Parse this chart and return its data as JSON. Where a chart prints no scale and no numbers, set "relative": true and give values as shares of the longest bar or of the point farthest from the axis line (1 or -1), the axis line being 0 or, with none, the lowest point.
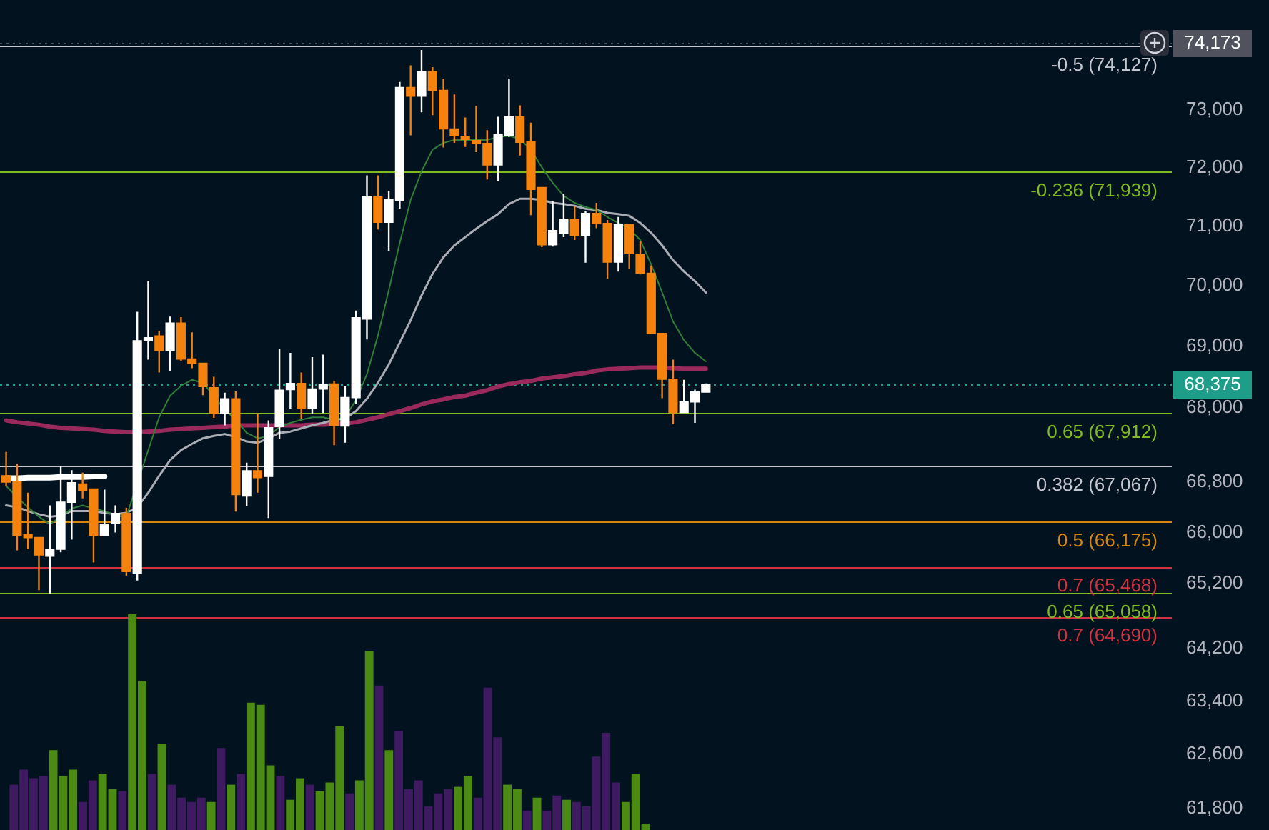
{
  "chart_data": [
    {
      "type": "candlestick",
      "categories": [
        null,
        null,
        null,
        null,
        null,
        null,
        null,
        null,
        null,
        null,
        null,
        null,
        null,
        null,
        null,
        null,
        null,
        null,
        null,
        null,
        null,
        null,
        null,
        null,
        null,
        null,
        null,
        null,
        null,
        null,
        null,
        null,
        null,
        null,
        null,
        null,
        null,
        null,
        null,
        null,
        null,
        null,
        null,
        null,
        null,
        null,
        null,
        null,
        null,
        null,
        null,
        null,
        null,
        null,
        null,
        null,
        null,
        null,
        null,
        null,
        null,
        null,
        null,
        null,
        null
      ],
      "ohlc": [
        [
          66910,
          67280,
          66740,
          66790
        ],
        [
          66820,
          67090,
          65720,
          65940
        ],
        [
          65980,
          66630,
          65740,
          65910
        ],
        [
          65930,
          65930,
          65100,
          65640
        ],
        [
          65620,
          66430,
          65040,
          65750
        ],
        [
          65730,
          67050,
          65690,
          66490
        ],
        [
          66470,
          66990,
          65890,
          66800
        ],
        [
          66780,
          66950,
          66540,
          66650
        ],
        [
          66700,
          66700,
          65530,
          65950
        ],
        [
          65950,
          66680,
          65950,
          66140
        ],
        [
          66130,
          66430,
          66000,
          66310
        ],
        [
          66310,
          66390,
          65320,
          65380
        ],
        [
          65350,
          69570,
          65250,
          69100
        ],
        [
          69080,
          70080,
          68780,
          69150
        ],
        [
          69180,
          69250,
          68570,
          68920
        ],
        [
          68920,
          69490,
          68590,
          69390
        ],
        [
          69390,
          69480,
          68760,
          68780
        ],
        [
          68800,
          69230,
          68640,
          68710
        ],
        [
          68730,
          68730,
          68200,
          68330
        ],
        [
          68330,
          68500,
          67830,
          67890
        ],
        [
          67890,
          68240,
          67710,
          68150
        ],
        [
          68150,
          68260,
          66330,
          66590
        ],
        [
          66570,
          67110,
          66420,
          66990
        ],
        [
          66990,
          67910,
          66630,
          66860
        ],
        [
          66880,
          67790,
          66230,
          67680
        ],
        [
          67680,
          68960,
          67490,
          68290
        ],
        [
          68280,
          68890,
          67970,
          68400
        ],
        [
          68400,
          68570,
          67820,
          67980
        ],
        [
          67980,
          68820,
          67890,
          68310
        ],
        [
          68290,
          68860,
          67910,
          68380
        ],
        [
          68390,
          68430,
          67390,
          67700
        ],
        [
          67690,
          68340,
          67430,
          68170
        ],
        [
          68150,
          69590,
          68050,
          69480
        ],
        [
          69440,
          71870,
          69110,
          71510
        ],
        [
          71510,
          71870,
          70950,
          71060
        ],
        [
          71060,
          71600,
          70590,
          71470
        ],
        [
          71430,
          73490,
          71300,
          73400
        ],
        [
          73400,
          73780,
          72560,
          73230
        ],
        [
          73230,
          74050,
          72960,
          73680
        ],
        [
          73680,
          73750,
          72910,
          73330
        ],
        [
          73350,
          73550,
          72350,
          72660
        ],
        [
          72680,
          73270,
          72430,
          72540
        ],
        [
          72550,
          72870,
          72360,
          72480
        ],
        [
          72480,
          73070,
          72270,
          72410
        ],
        [
          72430,
          72650,
          71800,
          72040
        ],
        [
          72040,
          72880,
          71770,
          72580
        ],
        [
          72550,
          73550,
          72530,
          72900
        ],
        [
          72900,
          73080,
          72210,
          72430
        ],
        [
          72460,
          72780,
          71190,
          71620
        ],
        [
          71670,
          71670,
          70650,
          70680
        ],
        [
          70680,
          71430,
          70660,
          70940
        ],
        [
          70870,
          71550,
          70820,
          71130
        ],
        [
          71130,
          71350,
          70770,
          70840
        ],
        [
          70840,
          71260,
          70390,
          71230
        ],
        [
          71230,
          71400,
          70970,
          71040
        ],
        [
          71060,
          71110,
          70120,
          70390
        ],
        [
          70390,
          71160,
          70240,
          71040
        ],
        [
          71040,
          71040,
          70290,
          70530
        ],
        [
          70530,
          70750,
          70190,
          70200
        ],
        [
          70220,
          70340,
          69200,
          69200
        ],
        [
          69220,
          69220,
          68150,
          68450
        ],
        [
          68470,
          68780,
          67730,
          67910
        ],
        [
          67910,
          68450,
          67910,
          68100
        ],
        [
          68080,
          68290,
          67750,
          68260
        ],
        [
          68240,
          68390,
          68240,
          68375
        ]
      ],
      "colors": [
        "#f5820d",
        "#f5820d",
        "#f5820d",
        "#f5820d",
        "#ffffff",
        "#ffffff",
        "#ffffff",
        "#f5820d",
        "#f5820d",
        "#ffffff",
        "#ffffff",
        "#f5820d",
        "#ffffff",
        "#ffffff",
        "#f5820d",
        "#ffffff",
        "#f5820d",
        "#f5820d",
        "#f5820d",
        "#f5820d",
        "#ffffff",
        "#f5820d",
        "#ffffff",
        "#f5820d",
        "#ffffff",
        "#ffffff",
        "#ffffff",
        "#f5820d",
        "#ffffff",
        "#ffffff",
        "#f5820d",
        "#ffffff",
        "#ffffff",
        "#ffffff",
        "#f5820d",
        "#ffffff",
        "#ffffff",
        "#f5820d",
        "#ffffff",
        "#f5820d",
        "#f5820d",
        "#f5820d",
        "#f5820d",
        "#f5820d",
        "#f5820d",
        "#ffffff",
        "#ffffff",
        "#f5820d",
        "#f5820d",
        "#f5820d",
        "#ffffff",
        "#ffffff",
        "#f5820d",
        "#ffffff",
        "#f5820d",
        "#f5820d",
        "#ffffff",
        "#f5820d",
        "#f5820d",
        "#f5820d",
        "#f5820d",
        "#f5820d",
        "#ffffff",
        "#ffffff",
        "#ffffff"
      ],
      "series": [
        {
          "type": "line",
          "color": "#2f7f3a",
          "values": [
            66740,
            66560,
            66400,
            66250,
            66130,
            66250,
            66380,
            66430,
            66380,
            66340,
            66270,
            66250,
            null,
            67310,
            67840,
            68190,
            68350,
            68450,
            68400,
            68190,
            67960,
            67800,
            67590,
            67500,
            67540,
            67680,
            67750,
            67800,
            67840,
            67840,
            67800,
            67840,
            68120,
            68540,
            69170,
            69930,
            70720,
            71450,
            71940,
            72310,
            72430,
            72480,
            72480,
            72480,
            72480,
            72530,
            72550,
            72500,
            72310,
            72010,
            71740,
            71520,
            71400,
            71330,
            71280,
            71160,
            71060,
            70960,
            70770,
            70360,
            69890,
            69410,
            69100,
            68890,
            68750
          ]
        },
        {
          "type": "line",
          "color": "#a9acb4",
          "values": [
            66430,
            66400,
            66340,
            66290,
            66250,
            66270,
            66340,
            66340,
            66340,
            66310,
            66290,
            66310,
            66400,
            66630,
            66900,
            67150,
            67310,
            67410,
            67500,
            67540,
            67570,
            67520,
            67450,
            67430,
            67500,
            67590,
            67610,
            67660,
            67710,
            67750,
            67800,
            67820,
            67940,
            68140,
            68400,
            68700,
            69060,
            69430,
            69840,
            70200,
            70480,
            70680,
            70820,
            70960,
            71090,
            71210,
            71380,
            71470,
            71470,
            71450,
            71400,
            71380,
            71350,
            71300,
            71280,
            71230,
            71210,
            71180,
            71060,
            70890,
            70680,
            70430,
            70240,
            70080,
            69890
          ]
        },
        {
          "type": "line",
          "color": "#9b2a5c",
          "values": [
            67790,
            67760,
            67740,
            67720,
            67690,
            67670,
            67660,
            67650,
            67640,
            67620,
            67610,
            67600,
            67600,
            67610,
            67620,
            67640,
            67650,
            67660,
            67670,
            67680,
            67690,
            67710,
            67710,
            67710,
            67710,
            67710,
            67710,
            67710,
            67720,
            67720,
            67730,
            67740,
            67760,
            67800,
            67840,
            67890,
            67940,
            67990,
            68050,
            68100,
            68130,
            68170,
            68190,
            68240,
            68280,
            68340,
            68380,
            68410,
            68430,
            68470,
            68490,
            68510,
            68540,
            68560,
            68600,
            68620,
            68630,
            68640,
            68650,
            68650,
            68650,
            68640,
            68630,
            68630,
            68630
          ]
        },
        {
          "type": "line",
          "color": "#ffffff",
          "values": [
            66860,
            66860,
            66870,
            66870,
            66870,
            66880,
            66880,
            66880,
            66890,
            66890,
            null,
            null,
            null,
            null,
            null,
            null,
            null,
            null,
            null,
            null,
            null,
            null,
            null,
            null,
            null,
            null,
            null,
            null,
            null,
            null,
            null,
            null,
            null,
            null,
            null,
            null,
            null,
            null,
            null,
            null,
            null,
            null,
            null,
            null,
            null,
            null,
            null,
            null,
            null,
            null,
            null,
            null,
            null,
            null,
            null,
            null,
            null,
            null,
            null,
            null,
            null,
            null,
            null,
            null,
            null
          ]
        }
      ],
      "ylim": [
        61480,
        74940
      ],
      "yticks": [
        {
          "value": 73000,
          "label": "73,000"
        },
        {
          "value": 72000,
          "label": "72,000"
        },
        {
          "value": 71000,
          "label": "71,000"
        },
        {
          "value": 70000,
          "label": "70,000"
        },
        {
          "value": 69000,
          "label": "69,000"
        },
        {
          "value": 68000,
          "label": "68,000"
        },
        {
          "value": 66800,
          "label": "66,800"
        },
        {
          "value": 66000,
          "label": "66,000"
        },
        {
          "value": 65200,
          "label": "65,200"
        },
        {
          "value": 64200,
          "label": "64,200"
        },
        {
          "value": 63400,
          "label": "63,400"
        },
        {
          "value": 62600,
          "label": "62,600"
        },
        {
          "value": 61800,
          "label": "61,800"
        }
      ],
      "log": true,
      "tick_labels": "y",
      "ref_lines": [
        {
          "axis": "y",
          "value": 74127,
          "label": "-0.5 (74,127)",
          "color": "#c3c6ce"
        },
        {
          "axis": "y",
          "value": 71939,
          "label": "-0.236 (71,939)",
          "color": "#7fba1f"
        },
        {
          "axis": "y",
          "value": 67912,
          "label": "0.65 (67,912)",
          "color": "#7fba1f"
        },
        {
          "axis": "y",
          "value": 67067,
          "label": "0.382 (67,067)",
          "color": "#c3c6ce"
        },
        {
          "axis": "y",
          "value": 66175,
          "label": "0.5 (66,175)",
          "color": "#d4860f"
        },
        {
          "axis": "y",
          "value": 65468,
          "label": "0.7 (65,468)",
          "color": "#d0323f"
        },
        {
          "axis": "y",
          "value": 65058,
          "label": "0.65 (65,058)",
          "color": "#7fba1f"
        },
        {
          "axis": "y",
          "value": 64690,
          "label": "0.7 (64,690)",
          "color": "#d0323f"
        },
        {
          "axis": "y",
          "value": 74173,
          "label": "74,173",
          "color": "#50535e",
          "line_style": "dotted"
        },
        {
          "axis": "y",
          "value": 68375,
          "label": "68,375",
          "color": "#1e9e88",
          "line_style": "dotted"
        }
      ]
    },
    {
      "type": "bar",
      "categories": [
        null,
        null,
        null,
        null,
        null,
        null,
        null,
        null,
        null,
        null,
        null,
        null,
        null,
        null,
        null,
        null,
        null,
        null,
        null,
        null,
        null,
        null,
        null,
        null,
        null,
        null,
        null,
        null,
        null,
        null,
        null,
        null,
        null,
        null,
        null,
        null,
        null,
        null,
        null,
        null,
        null,
        null,
        null,
        null,
        null,
        null,
        null,
        null,
        null,
        null,
        null,
        null,
        null,
        null,
        null,
        null,
        null,
        null,
        null,
        null,
        null,
        null,
        null,
        null,
        null
      ],
      "values": [
        0.21,
        0.28,
        0.24,
        0.25,
        0.37,
        0.25,
        0.28,
        0.13,
        0.23,
        0.26,
        0.19,
        0.18,
        1,
        0.69,
        0.26,
        0.4,
        0.21,
        0.15,
        0.13,
        0.15,
        0.13,
        0.38,
        0.21,
        0.26,
        0.59,
        0.58,
        0.3,
        0.25,
        0.14,
        0.24,
        0.21,
        0.18,
        0.22,
        0.48,
        0.17,
        0.23,
        0.83,
        0.67,
        0.37,
        0.46,
        0.19,
        0.23,
        0.11,
        0.17,
        0.19,
        0.2,
        0.25,
        0.15,
        0.66,
        0.43,
        0.21,
        0.19,
        0.09,
        0.15,
        0.09,
        0.16,
        0.14,
        0.13,
        0.11,
        0.34,
        0.45,
        0.22,
        0.13,
        0.26,
        0.03
      ],
      "colors": [
        "#3e1a61",
        "#3e1a61",
        "#3e1a61",
        "#3e1a61",
        "#4b8b13",
        "#4b8b13",
        "#4b8b13",
        "#3e1a61",
        "#3e1a61",
        "#4b8b13",
        "#4b8b13",
        "#3e1a61",
        "#4b8b13",
        "#4b8b13",
        "#3e1a61",
        "#4b8b13",
        "#3e1a61",
        "#3e1a61",
        "#3e1a61",
        "#3e1a61",
        "#4b8b13",
        "#3e1a61",
        "#4b8b13",
        "#3e1a61",
        "#4b8b13",
        "#4b8b13",
        "#4b8b13",
        "#3e1a61",
        "#4b8b13",
        "#4b8b13",
        "#3e1a61",
        "#4b8b13",
        "#4b8b13",
        "#4b8b13",
        "#3e1a61",
        "#4b8b13",
        "#4b8b13",
        "#3e1a61",
        "#4b8b13",
        "#3e1a61",
        "#3e1a61",
        "#3e1a61",
        "#3e1a61",
        "#3e1a61",
        "#3e1a61",
        "#4b8b13",
        "#4b8b13",
        "#3e1a61",
        "#3e1a61",
        "#3e1a61",
        "#4b8b13",
        "#4b8b13",
        "#3e1a61",
        "#4b8b13",
        "#3e1a61",
        "#3e1a61",
        "#4b8b13",
        "#3e1a61",
        "#3e1a61",
        "#3e1a61",
        "#3e1a61",
        "#3e1a61",
        "#4b8b13",
        "#4b8b13",
        "#4b8b13"
      ],
      "relative": true
    }
  ]
}
